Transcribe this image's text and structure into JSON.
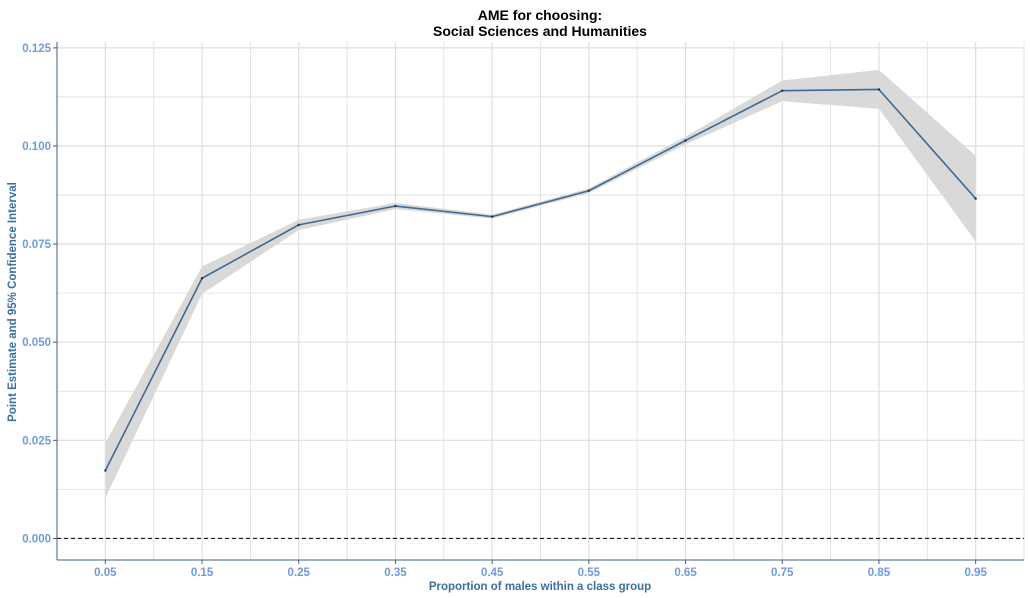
{
  "chart_data": {
    "type": "line",
    "title_lines": [
      "AME for choosing:",
      "Social Sciences and Humanities"
    ],
    "xlabel": "Proportion of males within a class group",
    "ylabel": "Point Estimate and 95% Confidence Interval",
    "x": [
      0.05,
      0.15,
      0.25,
      0.35,
      0.45,
      0.55,
      0.65,
      0.75,
      0.85,
      0.95
    ],
    "x_tick_labels": [
      "0.05",
      "0.15",
      "0.25",
      "0.35",
      "0.45",
      "0.55",
      "0.65",
      "0.75",
      "0.85",
      "0.95"
    ],
    "y_ticks": [
      0.0,
      0.025,
      0.05,
      0.075,
      0.1,
      0.125
    ],
    "y_tick_labels": [
      "0.000",
      "0.025",
      "0.050",
      "0.075",
      "0.100",
      "0.125"
    ],
    "xlim": [
      0.0,
      1.0
    ],
    "ylim": [
      -0.0055,
      0.1265
    ],
    "series": [
      {
        "values": [
          0.0173,
          0.0663,
          0.0799,
          0.0847,
          0.082,
          0.0886,
          0.1014,
          0.1141,
          0.1144,
          0.0866
        ],
        "ci_lower": [
          0.0103,
          0.0623,
          0.0786,
          0.0839,
          0.0815,
          0.088,
          0.1004,
          0.1114,
          0.1095,
          0.0757
        ],
        "ci_upper": [
          0.0243,
          0.0693,
          0.0812,
          0.0855,
          0.0825,
          0.0892,
          0.1024,
          0.1167,
          0.1194,
          0.0975
        ]
      }
    ],
    "reference_line": 0.0,
    "grid": true,
    "colors": {
      "line": "#3e6a93",
      "ribbon": "#d9d9d9",
      "tick_text": "#6f9bd8",
      "axis_title": "#3d6f9e",
      "grid": "#dedede",
      "axis": "#3e5f7f",
      "reference": "#000000"
    }
  }
}
